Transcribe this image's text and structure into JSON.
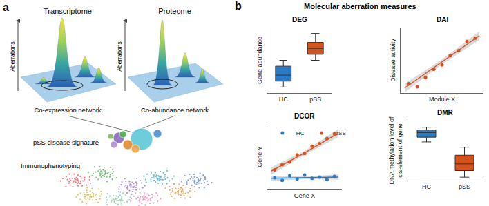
{
  "diagram": {
    "label": "a",
    "panels": [
      {
        "title": "Transcriptome",
        "axis_label": "Aberrations",
        "caption": "Co-expression network"
      },
      {
        "title": "Proteome",
        "axis_label": "Aberrations",
        "caption": "Co-abundance network"
      }
    ],
    "signature": "pSS disease signature",
    "phenotyping": "Immunophenotyping"
  },
  "panel_b": {
    "label": "b",
    "title": "Molecular aberration measures"
  },
  "chart_data": [
    {
      "type": "box",
      "title": "DEG",
      "ylabel": "Gene abundance",
      "categories": [
        "HC",
        "pSS"
      ],
      "colors": [
        "#2b7bc4",
        "#d2531e"
      ],
      "q1": [
        2,
        6.5
      ],
      "median": [
        3,
        7.5
      ],
      "q3": [
        4.5,
        8.5
      ],
      "lower": [
        1,
        5.5
      ],
      "upper": [
        5.5,
        10
      ],
      "ylim": [
        0,
        11
      ],
      "grid": false,
      "tick_labels": "x"
    },
    {
      "type": "scatter",
      "title": "DAI",
      "xlabel": "Module X",
      "ylabel": "Disease activity",
      "x": [
        1,
        2,
        3,
        4,
        5,
        6,
        7,
        8,
        9
      ],
      "values": [
        1.5,
        1,
        2.5,
        3.8,
        4.5,
        6,
        6.8,
        8.3,
        8.8
      ],
      "color": "#d2531e",
      "marker": "circle",
      "fit": {
        "x": [
          0.5,
          5,
          9.5
        ],
        "y": [
          0.8,
          5,
          9.2
        ],
        "lower": [
          0.1,
          4.6,
          8.5
        ],
        "upper": [
          1.5,
          5.4,
          9.9
        ]
      },
      "xlim": [
        0,
        10
      ],
      "ylim": [
        0,
        10.5
      ],
      "grid": false,
      "tick_labels": false
    },
    {
      "type": "scatter",
      "title": "DCOR",
      "xlabel": "Gene X",
      "ylabel": "Gene Y",
      "legend": "top left",
      "marker": "circle",
      "series": [
        {
          "name": "HC",
          "color": "#2b7bc4",
          "x": [
            1,
            2,
            3,
            4,
            5,
            6,
            7,
            8,
            9
          ],
          "values": [
            1.8,
            1.4,
            2.1,
            1.6,
            2.2,
            1.7,
            1.9,
            1.5,
            2.0
          ],
          "fit": {
            "x": [
              0.5,
              5,
              9.5
            ],
            "y": [
              1.7,
              1.8,
              1.9
            ],
            "lower": [
              1.3,
              1.6,
              1.5
            ],
            "upper": [
              2.1,
              2.0,
              2.3
            ]
          }
        },
        {
          "name": "pSS",
          "color": "#d2531e",
          "x": [
            1,
            2,
            3,
            4,
            5,
            6,
            7,
            8,
            9
          ],
          "values": [
            3,
            3.8,
            4.2,
            5.3,
            5.5,
            6.6,
            7,
            7.8,
            8.5
          ],
          "fit": {
            "x": [
              0.5,
              5,
              9.5
            ],
            "y": [
              2.8,
              5.6,
              8.6
            ],
            "lower": [
              2.2,
              5.3,
              8.0
            ],
            "upper": [
              3.4,
              5.9,
              9.2
            ]
          }
        }
      ],
      "xlim": [
        0,
        10
      ],
      "ylim": [
        0,
        10
      ],
      "grid": false,
      "tick_labels": false
    },
    {
      "type": "box",
      "title": "DMR",
      "ylabel": [
        "DNA methylation level of",
        "cis-element of gene"
      ],
      "categories": [
        "HC",
        "pSS"
      ],
      "colors": [
        "#2b7bc4",
        "#d2531e"
      ],
      "q1": [
        6.5,
        1.5
      ],
      "median": [
        7.2,
        2.5
      ],
      "q3": [
        7.6,
        3.8
      ],
      "lower": [
        5.8,
        0.5
      ],
      "upper": [
        8,
        5
      ],
      "ylim": [
        0,
        9
      ],
      "grid": false,
      "tick_labels": "x"
    }
  ]
}
